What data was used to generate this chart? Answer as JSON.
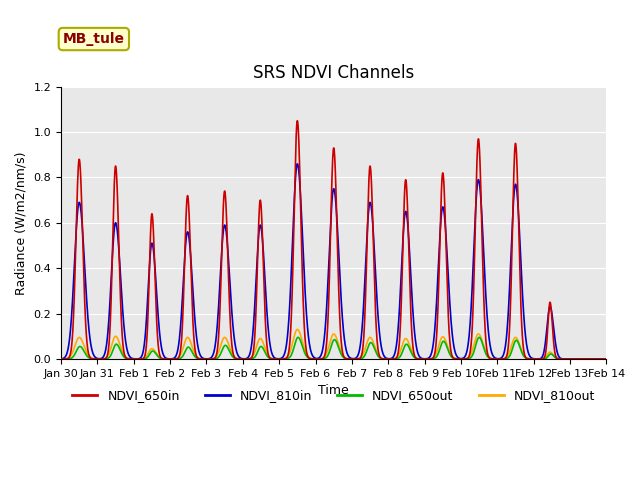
{
  "title": "SRS NDVI Channels",
  "xlabel": "Time",
  "ylabel": "Radiance (W/m2/nm/s)",
  "ylim": [
    0.0,
    1.2
  ],
  "yticks": [
    0.0,
    0.2,
    0.4,
    0.6,
    0.8,
    1.0,
    1.2
  ],
  "xtick_labels": [
    "Jan 30",
    "Jan 31",
    "Feb 1",
    "Feb 2",
    "Feb 3",
    "Feb 4",
    "Feb 5",
    "Feb 6",
    "Feb 7",
    "Feb 8",
    "Feb 9",
    "Feb 10",
    "Feb 11",
    "Feb 12",
    "Feb 13",
    "Feb 14"
  ],
  "xtick_positions": [
    0,
    1,
    2,
    3,
    4,
    5,
    6,
    7,
    8,
    9,
    10,
    11,
    12,
    13,
    14,
    15
  ],
  "annotation_text": "MB_tule",
  "colors": {
    "NDVI_650in": "#cc0000",
    "NDVI_810in": "#0000cc",
    "NDVI_650out": "#00bb00",
    "NDVI_810out": "#ffaa00"
  },
  "legend_labels": [
    "NDVI_650in",
    "NDVI_810in",
    "NDVI_650out",
    "NDVI_810out"
  ],
  "background_color": "#e8e8e8",
  "grid_color": "#ffffff",
  "title_fontsize": 12,
  "label_fontsize": 9,
  "tick_fontsize": 8,
  "legend_fontsize": 9
}
